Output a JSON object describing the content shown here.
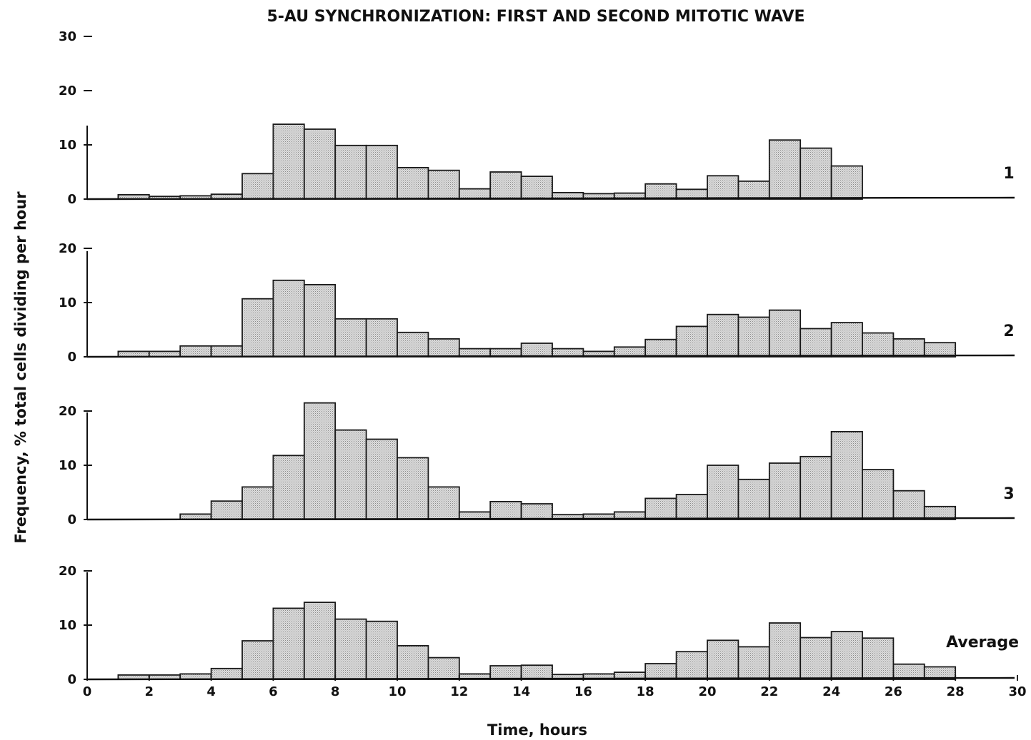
{
  "chart_data": {
    "type": "bar",
    "title": "5-AU SYNCHRONIZATION: FIRST AND SECOND MITOTIC WAVE",
    "xlabel": "Time, hours",
    "ylabel": "Frequency, % total cells dividing per hour",
    "xlim": [
      0,
      30
    ],
    "x_ticks": [
      "0",
      "2",
      "4",
      "6",
      "8",
      "10",
      "12",
      "14",
      "16",
      "18",
      "20",
      "22",
      "24",
      "26",
      "28",
      "30"
    ],
    "grid": false,
    "bar_width_hours": 1,
    "panels": [
      {
        "label": "1",
        "y_ticks": [
          "0",
          "10",
          "20",
          "30"
        ],
        "x_start": [
          1,
          2,
          3,
          4,
          5,
          6,
          7,
          8,
          9,
          10,
          11,
          12,
          13,
          14,
          15,
          16,
          17,
          18,
          19,
          20,
          21,
          22,
          23,
          24
        ],
        "values": [
          0.8,
          0.5,
          0.6,
          0.9,
          4.7,
          13.8,
          12.9,
          9.9,
          9.9,
          5.8,
          5.3,
          1.9,
          5.0,
          4.2,
          1.2,
          1.0,
          1.1,
          2.8,
          1.8,
          4.3,
          3.3,
          10.9,
          9.4,
          6.1
        ]
      },
      {
        "label": "2",
        "y_ticks": [
          "0",
          "10",
          "20"
        ],
        "x_start": [
          1,
          2,
          3,
          4,
          5,
          6,
          7,
          8,
          9,
          10,
          11,
          12,
          13,
          14,
          15,
          16,
          17,
          18,
          19,
          20,
          21,
          22,
          23,
          24,
          25,
          26,
          27
        ],
        "values": [
          1.0,
          1.0,
          2.0,
          2.0,
          10.7,
          14.1,
          13.3,
          7.0,
          7.0,
          4.5,
          3.3,
          1.5,
          1.5,
          2.5,
          1.5,
          1.0,
          1.8,
          3.2,
          5.6,
          7.8,
          7.3,
          8.6,
          5.2,
          6.3,
          4.4,
          3.3,
          2.6
        ]
      },
      {
        "label": "3",
        "y_ticks": [
          "0",
          "10",
          "20"
        ],
        "x_start": [
          3,
          4,
          5,
          6,
          7,
          8,
          9,
          10,
          11,
          12,
          13,
          14,
          15,
          16,
          17,
          18,
          19,
          20,
          21,
          22,
          23,
          24,
          25,
          26,
          27
        ],
        "values": [
          1.0,
          3.4,
          6.0,
          11.8,
          21.5,
          16.5,
          14.8,
          11.4,
          6.0,
          1.4,
          3.3,
          2.9,
          0.9,
          1.0,
          1.4,
          3.9,
          4.6,
          10.0,
          7.4,
          10.4,
          11.6,
          16.2,
          9.2,
          5.3,
          2.4
        ]
      },
      {
        "label": "Average",
        "y_ticks": [
          "0",
          "10",
          "20"
        ],
        "x_start": [
          1,
          2,
          3,
          4,
          5,
          6,
          7,
          8,
          9,
          10,
          11,
          12,
          13,
          14,
          15,
          16,
          17,
          18,
          19,
          20,
          21,
          22,
          23,
          24,
          25,
          26,
          27
        ],
        "values": [
          0.8,
          0.8,
          1.0,
          2.0,
          7.1,
          13.1,
          14.2,
          11.1,
          10.7,
          6.2,
          4.0,
          1.0,
          2.5,
          2.6,
          0.9,
          1.0,
          1.3,
          2.9,
          5.1,
          7.2,
          6.0,
          10.4,
          7.7,
          8.8,
          7.6,
          2.8,
          2.3
        ]
      }
    ]
  },
  "style": {
    "bar_fill": "#d4d4d4",
    "bar_stroke": "#1a1a1a",
    "axis_color": "#111111"
  }
}
